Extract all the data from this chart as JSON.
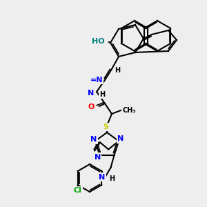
{
  "bg_color": "#eeeeee",
  "bond_color": "#000000",
  "bond_width": 1.5,
  "atom_colors": {
    "N": "#0000ff",
    "O": "#ff0000",
    "S": "#cccc00",
    "Cl": "#00aa00",
    "HO": "#008080",
    "C": "#000000",
    "H": "#000000"
  },
  "font_size": 7,
  "fig_size": [
    3.0,
    3.0
  ],
  "dpi": 100
}
